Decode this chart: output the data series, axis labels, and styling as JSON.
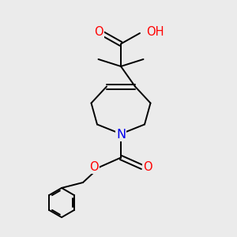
{
  "bg_color": "#ebebeb",
  "bond_color": "#000000",
  "bond_width": 1.4,
  "atom_colors": {
    "O": "#ff0000",
    "N": "#0000ee",
    "H": "#999999",
    "C": "#000000"
  }
}
